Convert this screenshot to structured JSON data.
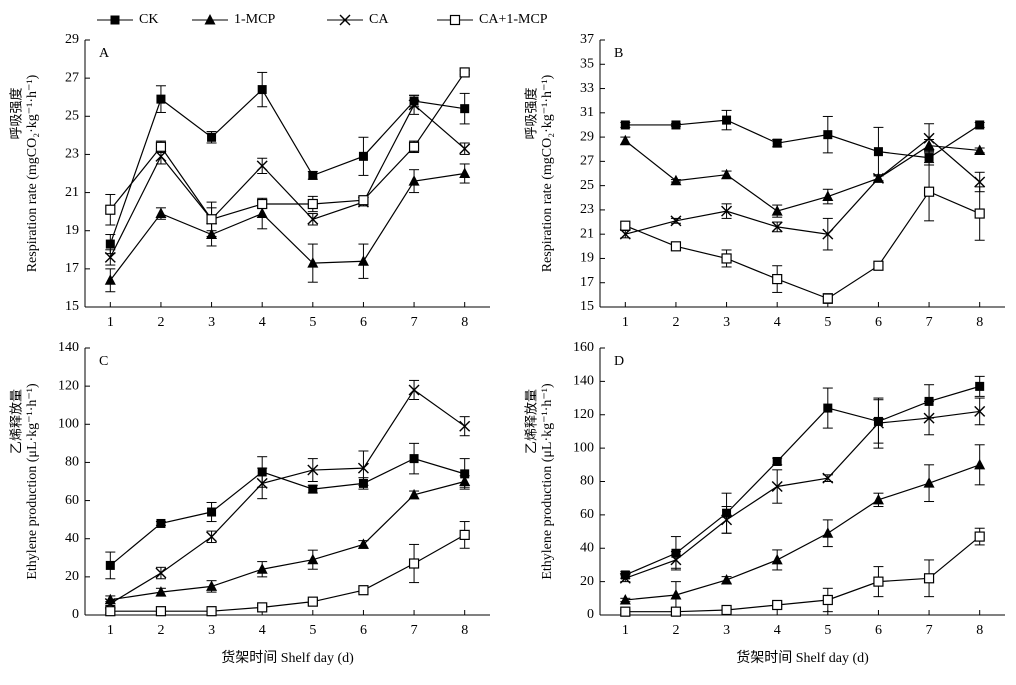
{
  "legend": [
    "CK",
    "1-MCP",
    "CA",
    "CA+1-MCP"
  ],
  "markers": [
    "filled-square",
    "filled-triangle",
    "cross",
    "open-square"
  ],
  "chart_data": [
    {
      "type": "line",
      "label": "A",
      "ylabel_cn": "呼吸强度",
      "ylabel": "Respiration rate (mgCO₂·kg⁻¹·h⁻¹)",
      "categories": [
        "1",
        "2",
        "3",
        "4",
        "5",
        "6",
        "7",
        "8"
      ],
      "ylim": [
        15,
        29
      ],
      "yticks": [
        15,
        17,
        19,
        21,
        23,
        25,
        27,
        29
      ],
      "series": [
        {
          "color": "#000000",
          "values": [
            18.3,
            25.9,
            23.9,
            26.4,
            21.9,
            22.9,
            25.8,
            25.4
          ],
          "errors": [
            0.5,
            0.7,
            0.3,
            0.9,
            0.2,
            1.0,
            0.3,
            0.8
          ]
        },
        {
          "color": "#000000",
          "values": [
            16.4,
            19.9,
            18.8,
            19.9,
            17.3,
            17.4,
            21.6,
            22.0
          ],
          "errors": [
            0.6,
            0.3,
            0.6,
            0.8,
            1.0,
            0.9,
            0.6,
            0.5
          ]
        },
        {
          "color": "#000000",
          "values": [
            17.6,
            22.9,
            19.6,
            22.4,
            19.6,
            20.5,
            25.6,
            23.3
          ],
          "errors": [
            0.4,
            0.4,
            0.6,
            0.4,
            0.3,
            0.2,
            0.5,
            0.3
          ]
        },
        {
          "color": "#000000",
          "values": [
            20.1,
            23.4,
            19.6,
            20.4,
            20.4,
            20.6,
            23.4,
            27.3
          ],
          "errors": [
            0.8,
            0.3,
            0.9,
            0.2,
            0.4,
            0.2,
            0.3,
            0.1
          ]
        }
      ]
    },
    {
      "type": "line",
      "label": "B",
      "ylabel_cn": "呼吸强度",
      "ylabel": "Respiration rate (mgCO₂·kg⁻¹·h⁻¹)",
      "categories": [
        "1",
        "2",
        "3",
        "4",
        "5",
        "6",
        "7",
        "8"
      ],
      "ylim": [
        15,
        37
      ],
      "yticks": [
        15,
        17,
        19,
        21,
        23,
        25,
        27,
        29,
        31,
        33,
        35,
        37
      ],
      "series": [
        {
          "color": "#000000",
          "values": [
            30.0,
            30.0,
            30.4,
            28.5,
            29.2,
            27.8,
            27.3,
            30.0
          ],
          "errors": [
            0.2,
            0.1,
            0.8,
            0.3,
            1.5,
            2.0,
            0.6,
            0.2
          ]
        },
        {
          "color": "#000000",
          "values": [
            28.7,
            25.4,
            25.9,
            22.9,
            24.1,
            25.6,
            28.3,
            27.9
          ],
          "errors": [
            0.3,
            0.1,
            0.3,
            0.5,
            0.6,
            0.2,
            0.5,
            0.2
          ]
        },
        {
          "color": "#000000",
          "values": [
            21.0,
            22.1,
            22.9,
            21.6,
            21.0,
            25.6,
            28.9,
            25.3
          ],
          "errors": [
            0.3,
            0.2,
            0.6,
            0.4,
            1.3,
            0.3,
            1.2,
            0.8
          ]
        },
        {
          "color": "#000000",
          "values": [
            21.7,
            20.0,
            19.0,
            17.3,
            15.7,
            18.4,
            24.5,
            22.7
          ],
          "errors": [
            0.3,
            0.3,
            0.7,
            1.1,
            0.4,
            0.2,
            2.4,
            2.2
          ]
        }
      ]
    },
    {
      "type": "line",
      "label": "C",
      "ylabel_cn": "乙烯释放量",
      "ylabel": "Ethylene production (μL·kg⁻¹·h⁻¹)",
      "xlabel": "货架时间 Shelf day (d)",
      "categories": [
        "1",
        "2",
        "3",
        "4",
        "5",
        "6",
        "7",
        "8"
      ],
      "ylim": [
        0,
        140
      ],
      "yticks": [
        0,
        20,
        40,
        60,
        80,
        100,
        120,
        140
      ],
      "series": [
        {
          "color": "#000000",
          "values": [
            26,
            48,
            54,
            75,
            66,
            69,
            82,
            74
          ],
          "errors": [
            7,
            1,
            5,
            8,
            2,
            3,
            8,
            8
          ]
        },
        {
          "color": "#000000",
          "values": [
            8,
            12,
            15,
            24,
            29,
            37,
            63,
            70
          ],
          "errors": [
            2,
            2,
            3,
            4,
            5,
            2,
            2,
            3
          ]
        },
        {
          "color": "#000000",
          "values": [
            6,
            22,
            41,
            69,
            76,
            77,
            118,
            99
          ],
          "errors": [
            1,
            3,
            3,
            8,
            6,
            9,
            5,
            5
          ]
        },
        {
          "color": "#000000",
          "values": [
            2,
            2,
            2,
            4,
            7,
            13,
            27,
            42
          ],
          "errors": [
            1,
            1,
            1,
            1,
            1,
            1,
            10,
            7
          ]
        }
      ]
    },
    {
      "type": "line",
      "label": "D",
      "ylabel_cn": "乙烯释放量",
      "ylabel": "Ethylene production (μL·kg⁻¹·h⁻¹)",
      "xlabel": "货架时间 Shelf day (d)",
      "categories": [
        "1",
        "2",
        "3",
        "4",
        "5",
        "6",
        "7",
        "8"
      ],
      "ylim": [
        0,
        160
      ],
      "yticks": [
        0,
        20,
        40,
        60,
        80,
        100,
        120,
        140,
        160
      ],
      "series": [
        {
          "color": "#000000",
          "values": [
            24,
            37,
            61,
            92,
            124,
            116,
            128,
            137
          ],
          "errors": [
            2,
            10,
            12,
            2,
            12,
            13,
            10,
            6
          ]
        },
        {
          "color": "#000000",
          "values": [
            9,
            12,
            21,
            33,
            49,
            69,
            79,
            90
          ],
          "errors": [
            1,
            8,
            2,
            6,
            8,
            4,
            11,
            12
          ]
        },
        {
          "color": "#000000",
          "values": [
            22,
            33,
            57,
            77,
            82,
            115,
            118,
            122
          ],
          "errors": [
            2,
            5,
            8,
            10,
            2,
            15,
            10,
            8
          ]
        },
        {
          "color": "#000000",
          "values": [
            2,
            2,
            3,
            6,
            9,
            20,
            22,
            47
          ],
          "errors": [
            1,
            1,
            1,
            1,
            7,
            9,
            11,
            5
          ]
        }
      ]
    }
  ]
}
